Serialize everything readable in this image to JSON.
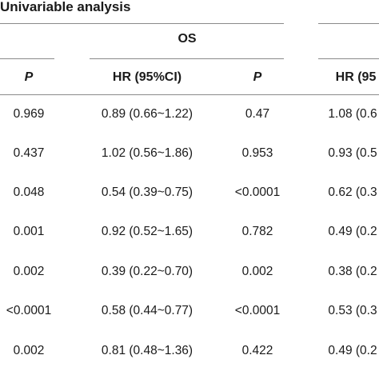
{
  "table": {
    "title": "Univariable analysis",
    "group_label": "OS",
    "columns": [
      "P",
      "HR (95%CI)",
      "P",
      "HR (95"
    ],
    "rows": [
      [
        "0.969",
        "0.89 (0.66~1.22)",
        "0.47",
        "1.08 (0.6"
      ],
      [
        "0.437",
        "1.02 (0.56~1.86)",
        "0.953",
        "0.93 (0.5"
      ],
      [
        "0.048",
        "0.54 (0.39~0.75)",
        "<0.0001",
        "0.62 (0.3"
      ],
      [
        "0.001",
        "0.92 (0.52~1.65)",
        "0.782",
        "0.49 (0.2"
      ],
      [
        "0.002",
        "0.39 (0.22~0.70)",
        "0.002",
        "0.38 (0.2"
      ],
      [
        "<0.0001",
        "0.58 (0.44~0.77)",
        "<0.0001",
        "0.53 (0.3"
      ],
      [
        "0.002",
        "0.81 (0.48~1.36)",
        "0.422",
        "0.49 (0.2"
      ]
    ]
  }
}
